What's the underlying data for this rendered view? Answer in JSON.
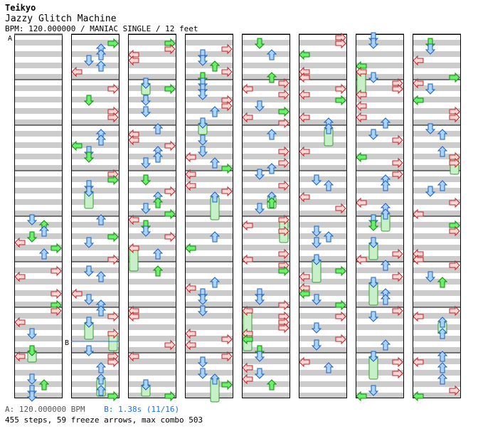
{
  "header": {
    "artist": "Teikyo",
    "title": "Jazzy Glitch Machine",
    "meta": "BPM: 120.000000 / MANIAC SINGLE / 12 feet"
  },
  "markers": {
    "a": "A",
    "b": "B"
  },
  "footer": {
    "bpm_marker": "A: 120.000000 BPM",
    "stop_marker": "B: 1.38s (11/16)",
    "stats": "455 steps, 59 freeze arrows, max combo 503"
  },
  "chart_data": {
    "type": "step-chart",
    "columns": 8,
    "measures_per_column": 8,
    "lanes": [
      "left",
      "down",
      "up",
      "right"
    ],
    "total_steps": 455,
    "freeze_arrows": 59,
    "max_combo": 503,
    "bpm": 120.0,
    "difficulty": "MANIAC",
    "style": "SINGLE",
    "feet": 12,
    "colors": {
      "left_right_quarter": "#ffd8d8",
      "down_blue": "#a8d4ff",
      "green": "#6cf06c",
      "freeze_body": "#c8f0c8",
      "stripe": "#cccccc"
    }
  }
}
